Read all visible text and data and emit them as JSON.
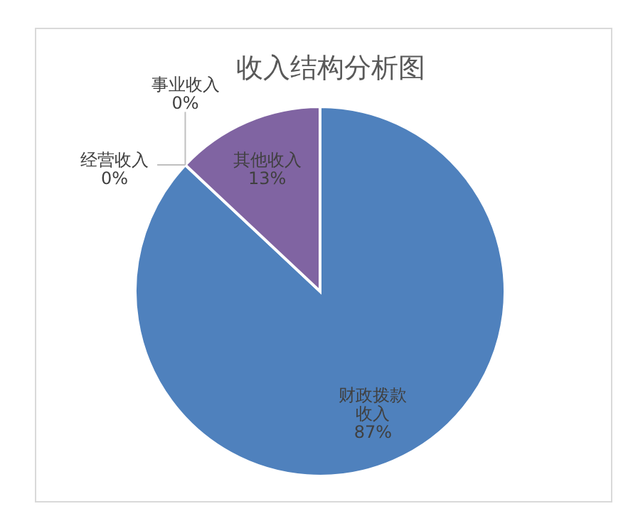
{
  "chart_data": {
    "type": "pie",
    "title": "收入结构分析图",
    "categories": [
      "财政拨款收入",
      "经营收入",
      "事业收入",
      "其他收入"
    ],
    "values": [
      87,
      0,
      0,
      13
    ],
    "value_labels": [
      "87%",
      "0%",
      "0%",
      "13%"
    ],
    "colors": [
      "#4f81bd",
      "#c0504d",
      "#9bbb59",
      "#8064a2"
    ]
  }
}
